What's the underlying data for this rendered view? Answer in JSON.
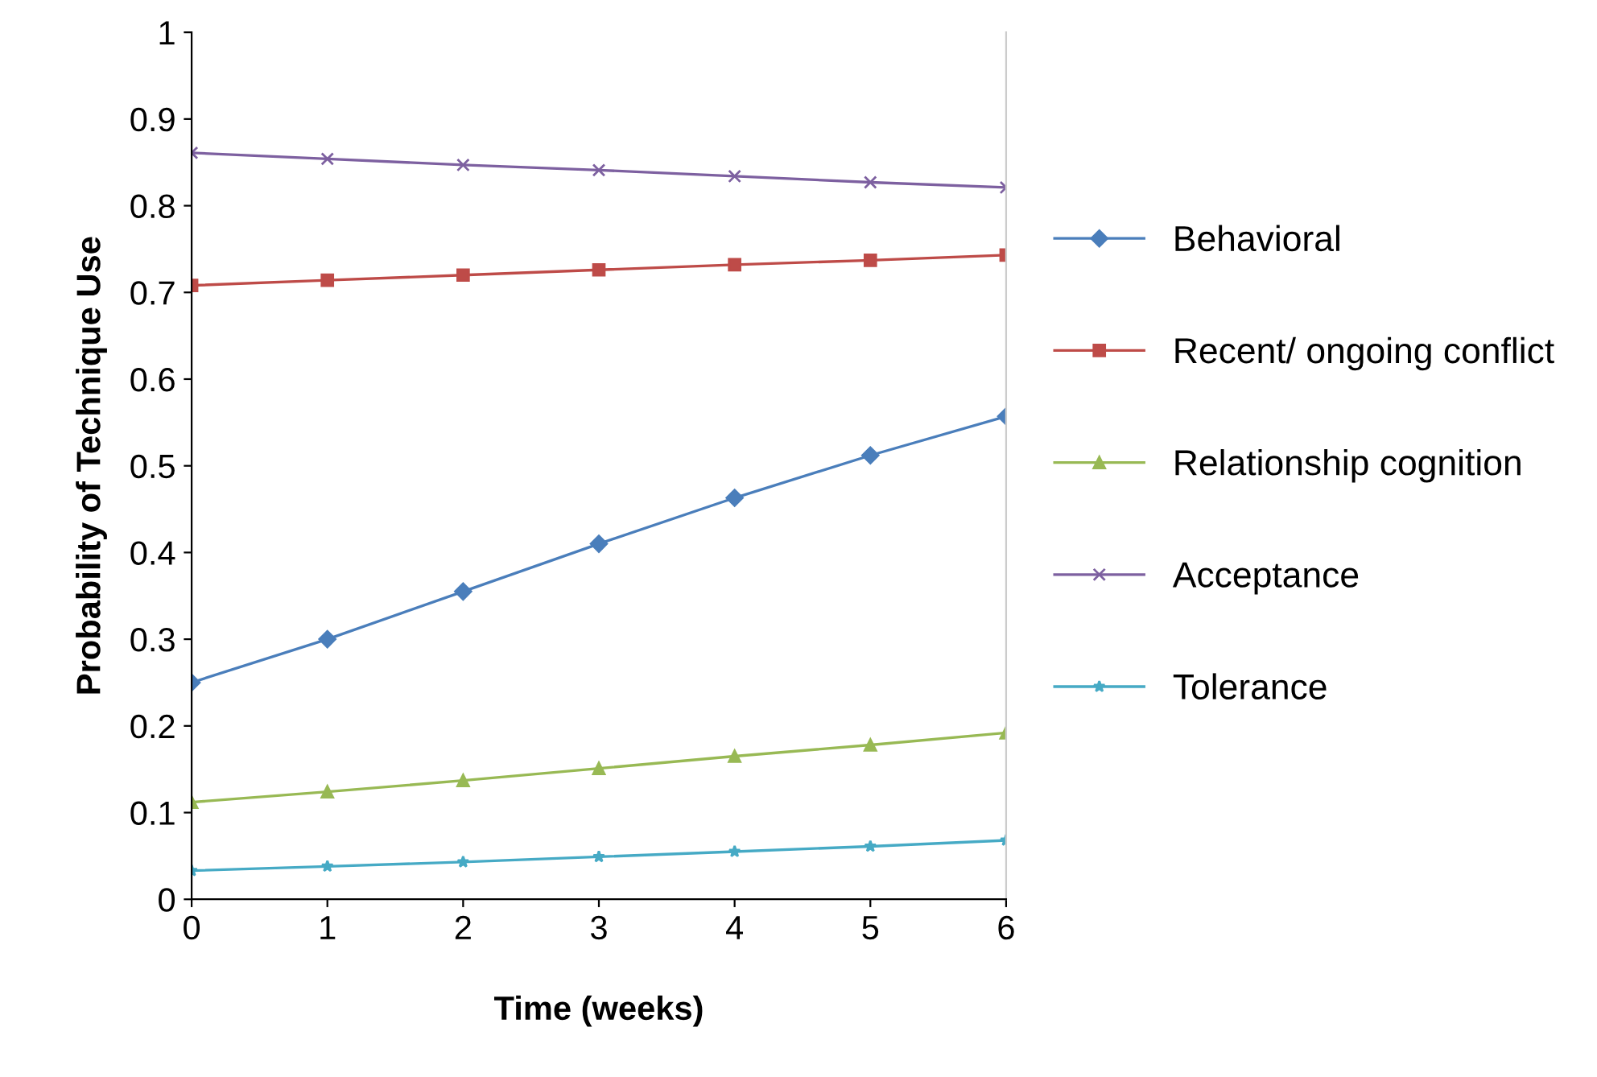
{
  "chart_data": {
    "type": "line",
    "xlabel": "Time (weeks)",
    "ylabel": "Probability of Technique Use",
    "x": [
      0,
      1,
      2,
      3,
      4,
      5,
      6
    ],
    "series": [
      {
        "name": "Behavioral",
        "color": "#4a7ebb",
        "marker": "diamond",
        "values": [
          0.25,
          0.3,
          0.355,
          0.41,
          0.463,
          0.512,
          0.557
        ]
      },
      {
        "name": "Recent/ ongoing conflict",
        "color": "#be4b48",
        "marker": "square",
        "values": [
          0.708,
          0.714,
          0.72,
          0.726,
          0.732,
          0.737,
          0.743
        ]
      },
      {
        "name": "Relationship cognition",
        "color": "#98b954",
        "marker": "triangle",
        "values": [
          0.112,
          0.124,
          0.137,
          0.151,
          0.165,
          0.178,
          0.192
        ]
      },
      {
        "name": "Acceptance",
        "color": "#7d60a0",
        "marker": "cross",
        "values": [
          0.861,
          0.854,
          0.847,
          0.841,
          0.834,
          0.827,
          0.821
        ]
      },
      {
        "name": "Tolerance",
        "color": "#46aac5",
        "marker": "star",
        "values": [
          0.033,
          0.038,
          0.043,
          0.049,
          0.055,
          0.061,
          0.068
        ]
      }
    ],
    "xlim": [
      0,
      6
    ],
    "xticks": [
      0,
      1,
      2,
      3,
      4,
      5,
      6
    ],
    "ylim": [
      0,
      1
    ],
    "yticks": [
      0,
      0.1,
      0.2,
      0.3,
      0.4,
      0.5,
      0.6,
      0.7,
      0.8,
      0.9,
      1
    ],
    "grid": false,
    "legend": "right",
    "line_style": "solid"
  }
}
